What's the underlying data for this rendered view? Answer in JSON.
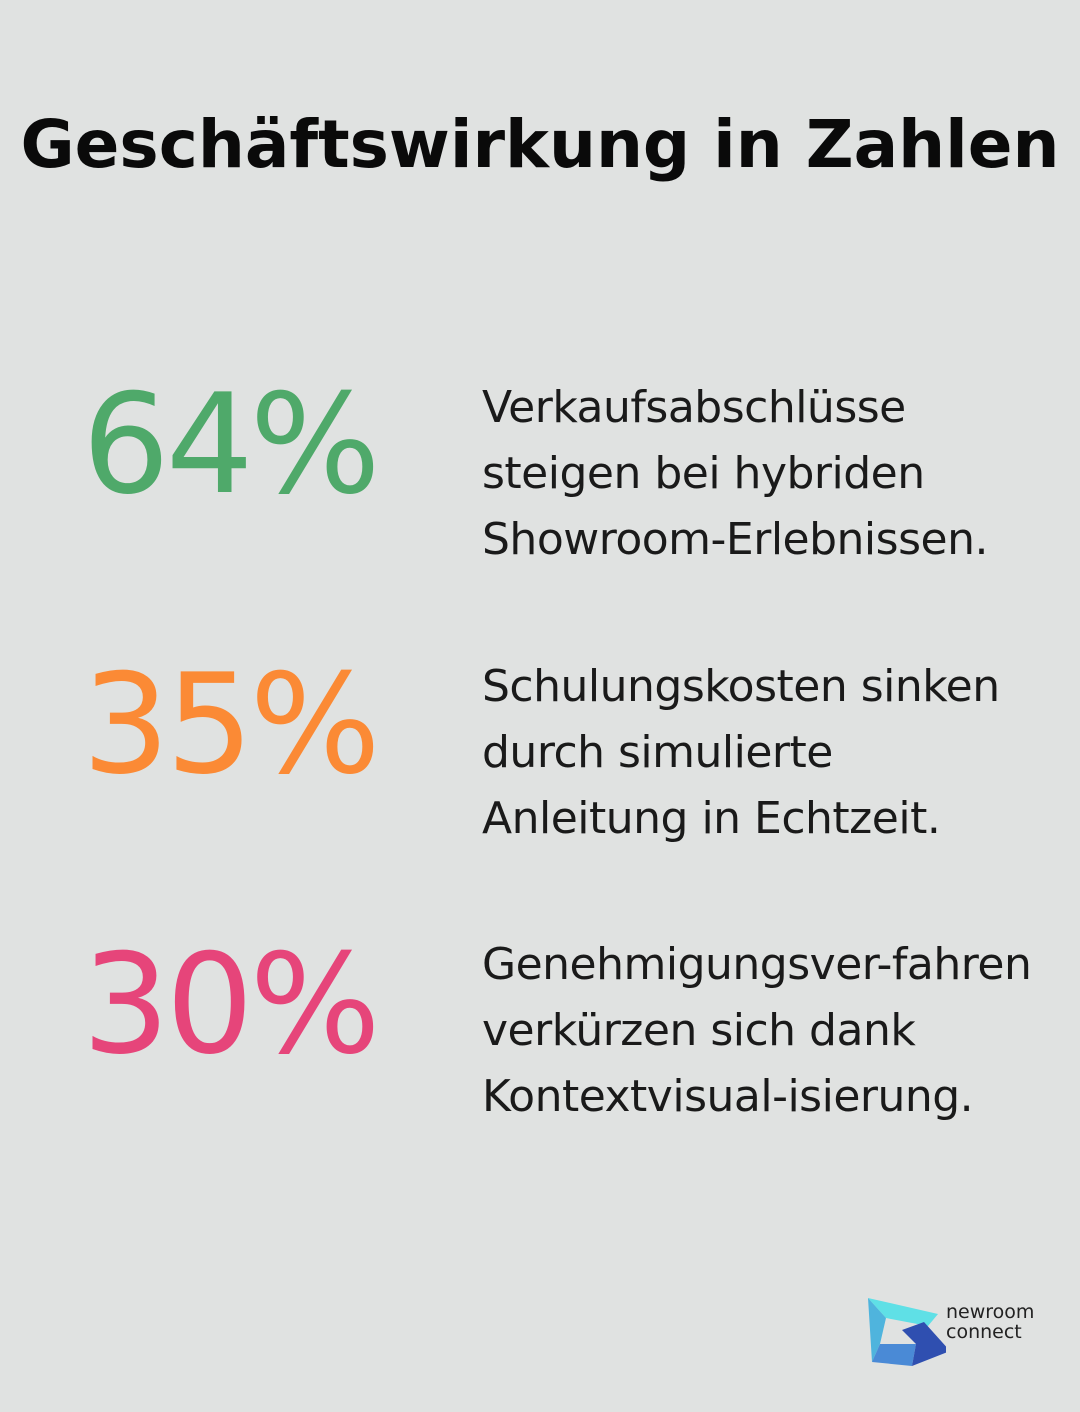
{
  "title": "Geschäftswirkung in Zahlen",
  "stats": [
    {
      "value": "64%",
      "color": "#4fa96a",
      "text": "Verkaufsabschlüsse steigen bei hybriden Showroom-Erlebnissen."
    },
    {
      "value": "35%",
      "color": "#fb8a35",
      "text": "Schulungskosten sinken durch simulierte Anleitung in Echtzeit."
    },
    {
      "value": "30%",
      "color": "#e6457a",
      "text": "Genehmigungsver-fahren verkürzen sich dank Kontextvisual-isierung."
    }
  ],
  "logo": {
    "line1": "newroom",
    "line2": "connect"
  }
}
